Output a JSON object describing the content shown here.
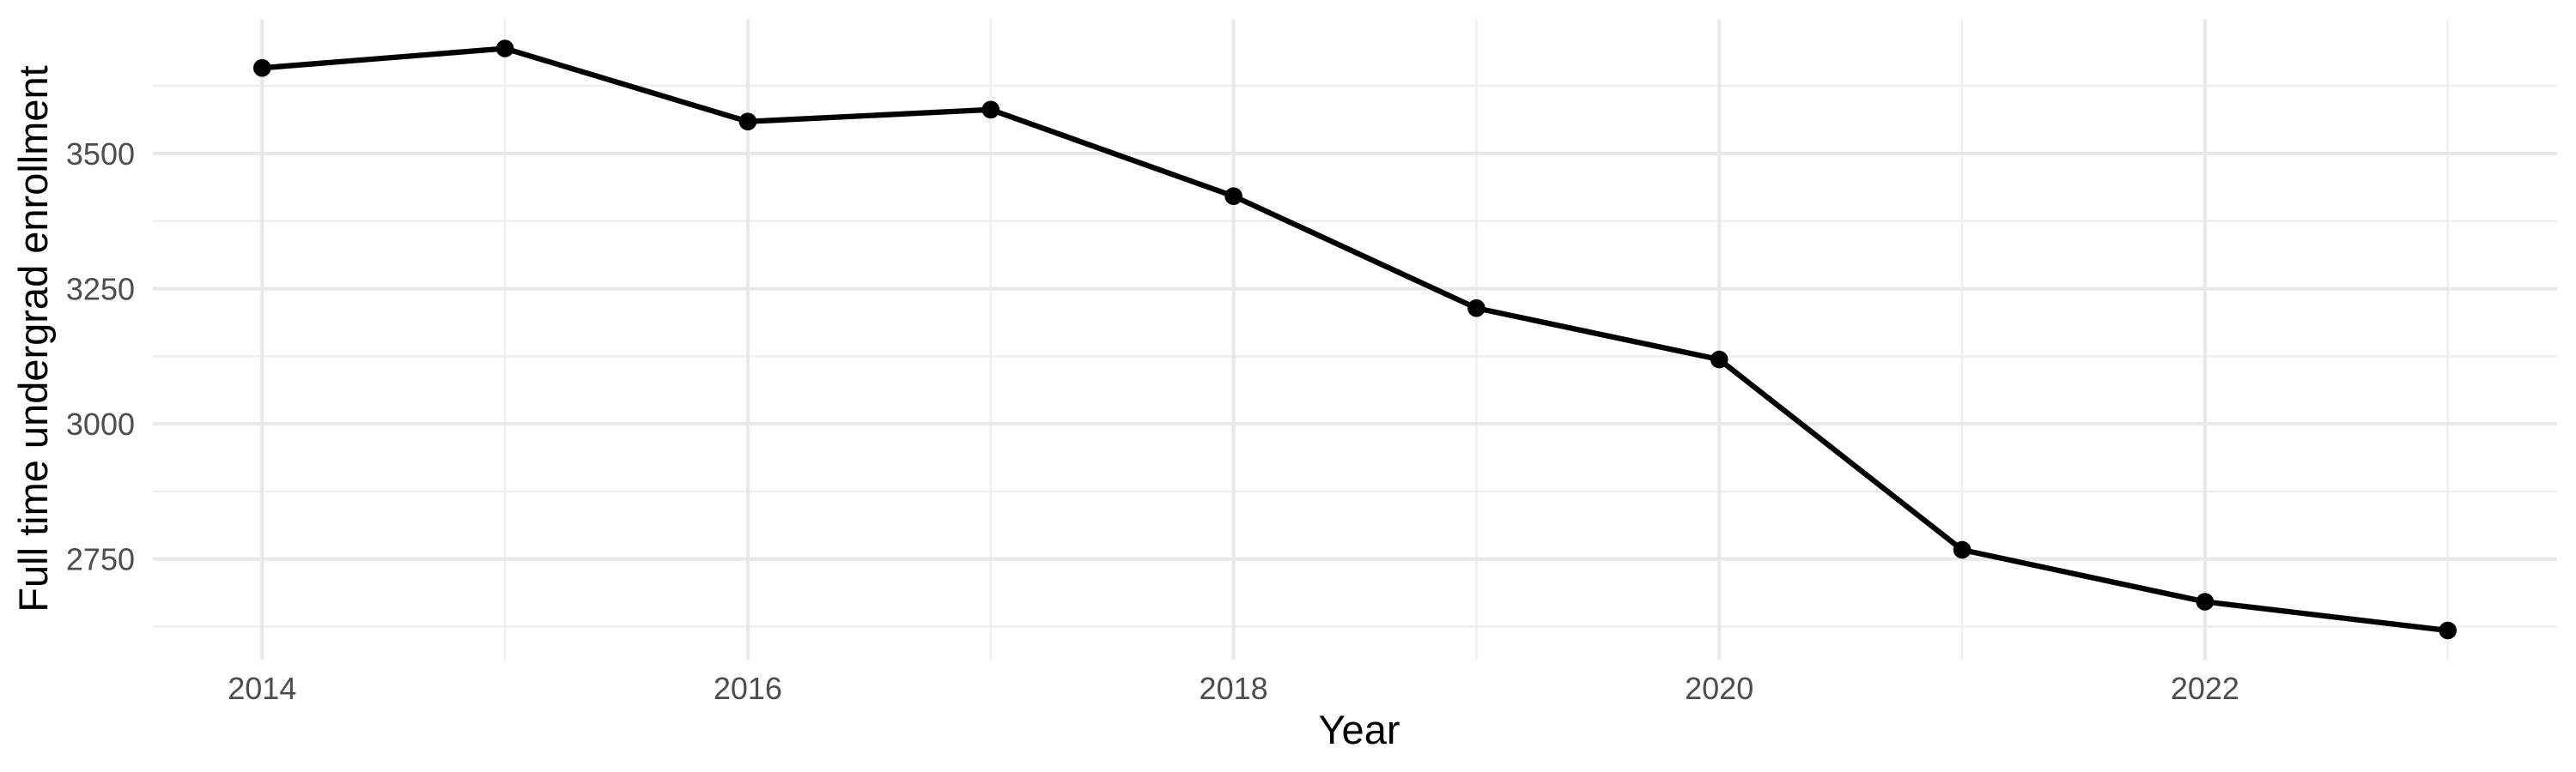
{
  "chart_data": {
    "type": "line",
    "title": "",
    "xlabel": "Year",
    "ylabel": "Full time undergrad enrollment",
    "x": [
      2014,
      2015,
      2016,
      2017,
      2018,
      2019,
      2020,
      2021,
      2022,
      2023
    ],
    "series": [
      {
        "name": "Full time undergrad enrollment",
        "values": [
          3658,
          3694,
          3559,
          3581,
          3421,
          3214,
          3119,
          2767,
          2671,
          2618
        ]
      }
    ],
    "x_ticks": [
      2014,
      2016,
      2018,
      2020,
      2022
    ],
    "x_minor_gridlines": [
      2015,
      2017,
      2019,
      2021,
      2023
    ],
    "y_ticks": [
      2750,
      3000,
      3250,
      3500
    ],
    "y_minor_gridlines": [
      2625,
      2875,
      3125,
      3375,
      3625
    ],
    "xlim": [
      2013.55,
      2023.45
    ],
    "ylim": [
      2564,
      3748
    ],
    "grid": true,
    "legend": false,
    "style": {
      "background": "#ffffff",
      "grid_major_color": "#e8e8e8",
      "grid_minor_color": "#efefef",
      "line_color": "#000000",
      "point_color": "#000000",
      "tick_label_color": "#4d4d4d",
      "axis_title_color": "#000000"
    }
  }
}
